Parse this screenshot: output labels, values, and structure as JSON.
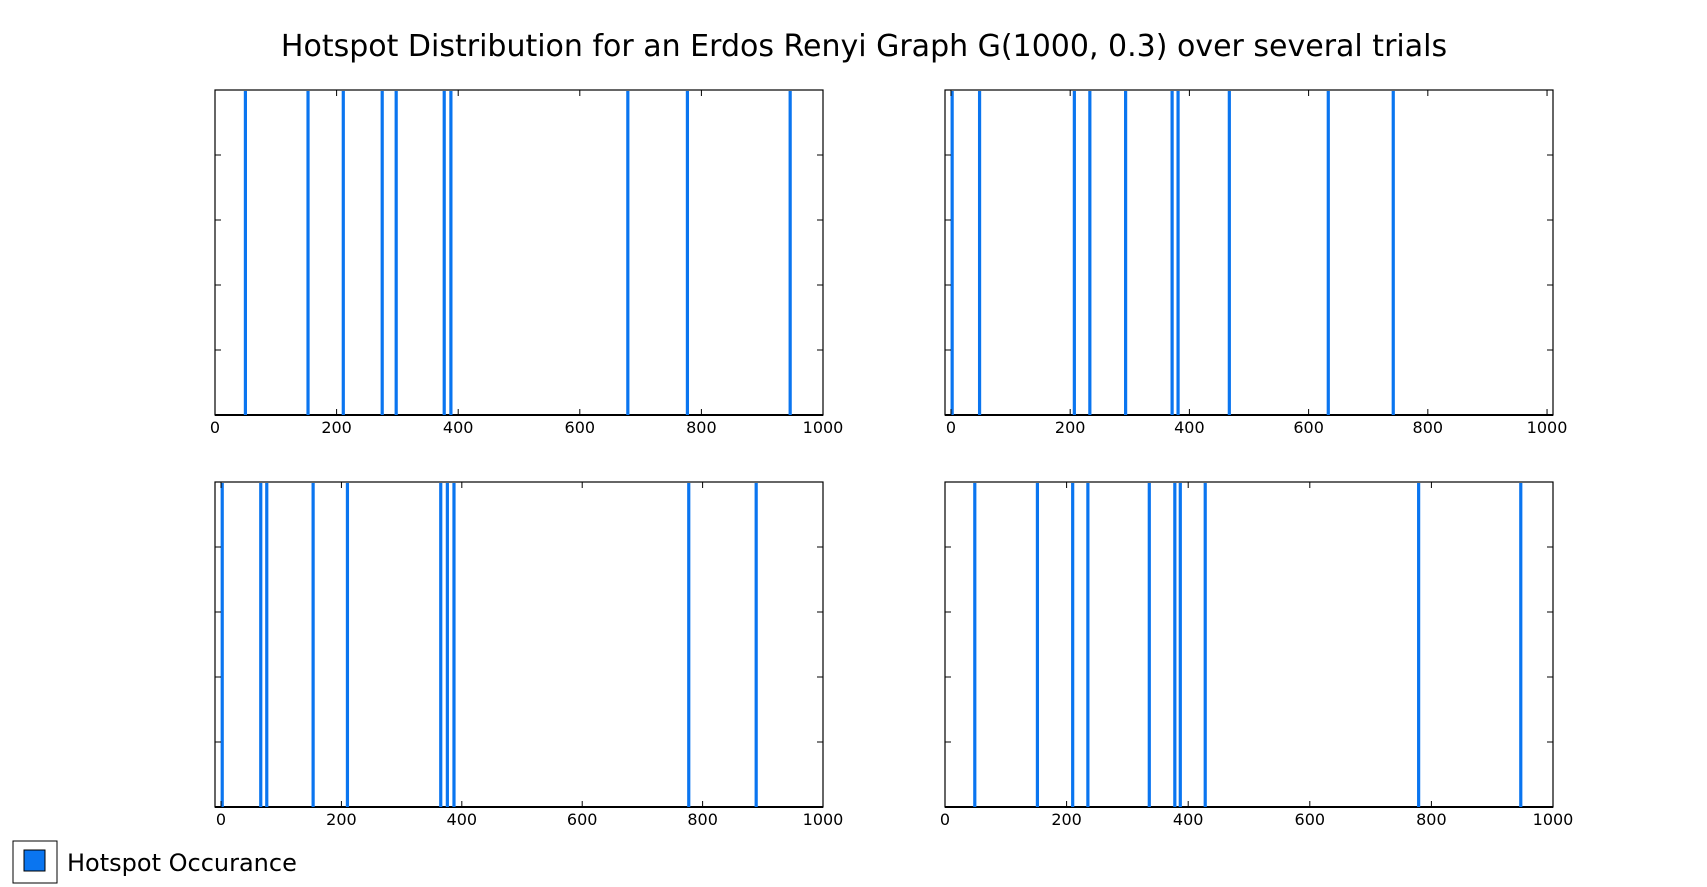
{
  "title": "Hotspot Distribution for an Erdos Renyi Graph G(1000, 0.3) over several trials",
  "legend": {
    "label": "Hotspot Occurance",
    "color": "#0a75f0",
    "placement": "bottom-left"
  },
  "chart_data": [
    {
      "type": "bar",
      "panel": "top-left",
      "xlim": [
        0,
        1000
      ],
      "xticks": [
        0,
        200,
        400,
        600,
        800,
        1000
      ],
      "tick_labels": [
        "0",
        "200",
        "400",
        "600",
        "800",
        "1000"
      ],
      "series": [
        {
          "name": "Hotspot Occurance",
          "color": "#0a75f0",
          "x": [
            50,
            153,
            211,
            275,
            298,
            377,
            388,
            679,
            777,
            946
          ]
        }
      ]
    },
    {
      "type": "bar",
      "panel": "top-right",
      "xlim": [
        -10,
        1010
      ],
      "xticks": [
        0,
        200,
        400,
        600,
        800,
        1000
      ],
      "tick_labels": [
        "0",
        "200",
        "400",
        "600",
        "800",
        "1000"
      ],
      "series": [
        {
          "name": "Hotspot Occurance",
          "color": "#0a75f0",
          "x": [
            2,
            48,
            207,
            233,
            293,
            371,
            381,
            467,
            633,
            742
          ]
        }
      ]
    },
    {
      "type": "bar",
      "panel": "bottom-left",
      "xlim": [
        -10,
        1000
      ],
      "xticks": [
        0,
        200,
        400,
        600,
        800,
        1000
      ],
      "tick_labels": [
        "0",
        "200",
        "400",
        "600",
        "800",
        "1000"
      ],
      "series": [
        {
          "name": "Hotspot Occurance",
          "color": "#0a75f0",
          "x": [
            2,
            66,
            76,
            153,
            210,
            365,
            376,
            387,
            777,
            889
          ]
        }
      ]
    },
    {
      "type": "bar",
      "panel": "bottom-right",
      "xlim": [
        0,
        1000
      ],
      "xticks": [
        0,
        200,
        400,
        600,
        800,
        1000
      ],
      "tick_labels": [
        "0",
        "200",
        "400",
        "600",
        "800",
        "1000"
      ],
      "series": [
        {
          "name": "Hotspot Occurance",
          "color": "#0a75f0",
          "x": [
            49,
            152,
            210,
            235,
            336,
            378,
            387,
            428,
            779,
            947
          ]
        }
      ]
    }
  ]
}
